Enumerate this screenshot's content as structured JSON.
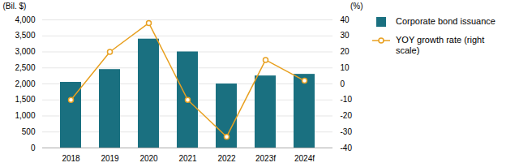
{
  "chart_data": {
    "type": "bar",
    "categories": [
      "2018",
      "2019",
      "2020",
      "2021",
      "2022",
      "2023f",
      "2024f"
    ],
    "series": [
      {
        "name": "Corporate bond issuance",
        "type": "bar",
        "color": "#1a7080",
        "values": [
          2050,
          2450,
          3400,
          3000,
          2000,
          2250,
          2300
        ]
      },
      {
        "name": "YOY growth rate (right\nscale)",
        "type": "line",
        "axis": "y2",
        "color": "#e8a020",
        "marker": "circle",
        "values": [
          -10,
          20,
          38,
          -10,
          -33,
          15,
          2
        ]
      }
    ],
    "ylabel": "(Bil. $)",
    "y2label": "(%)",
    "ylim": [
      0,
      4000
    ],
    "yticks": [
      0,
      500,
      {
        "value": 1000,
        "label": "1,000"
      },
      {
        "value": 1500,
        "label": "1,500"
      },
      {
        "value": 2000,
        "label": "2,000"
      },
      {
        "value": 2500,
        "label": "2,500"
      },
      {
        "value": 3000,
        "label": "3,000"
      },
      {
        "value": 3500,
        "label": "3,500"
      },
      {
        "value": 4000,
        "label": "4,000"
      }
    ],
    "y2lim": [
      -40,
      40
    ],
    "y2ticks": [
      -40,
      -30,
      -20,
      -10,
      0,
      10,
      20,
      30,
      40
    ],
    "grid": true,
    "legend": "right"
  }
}
